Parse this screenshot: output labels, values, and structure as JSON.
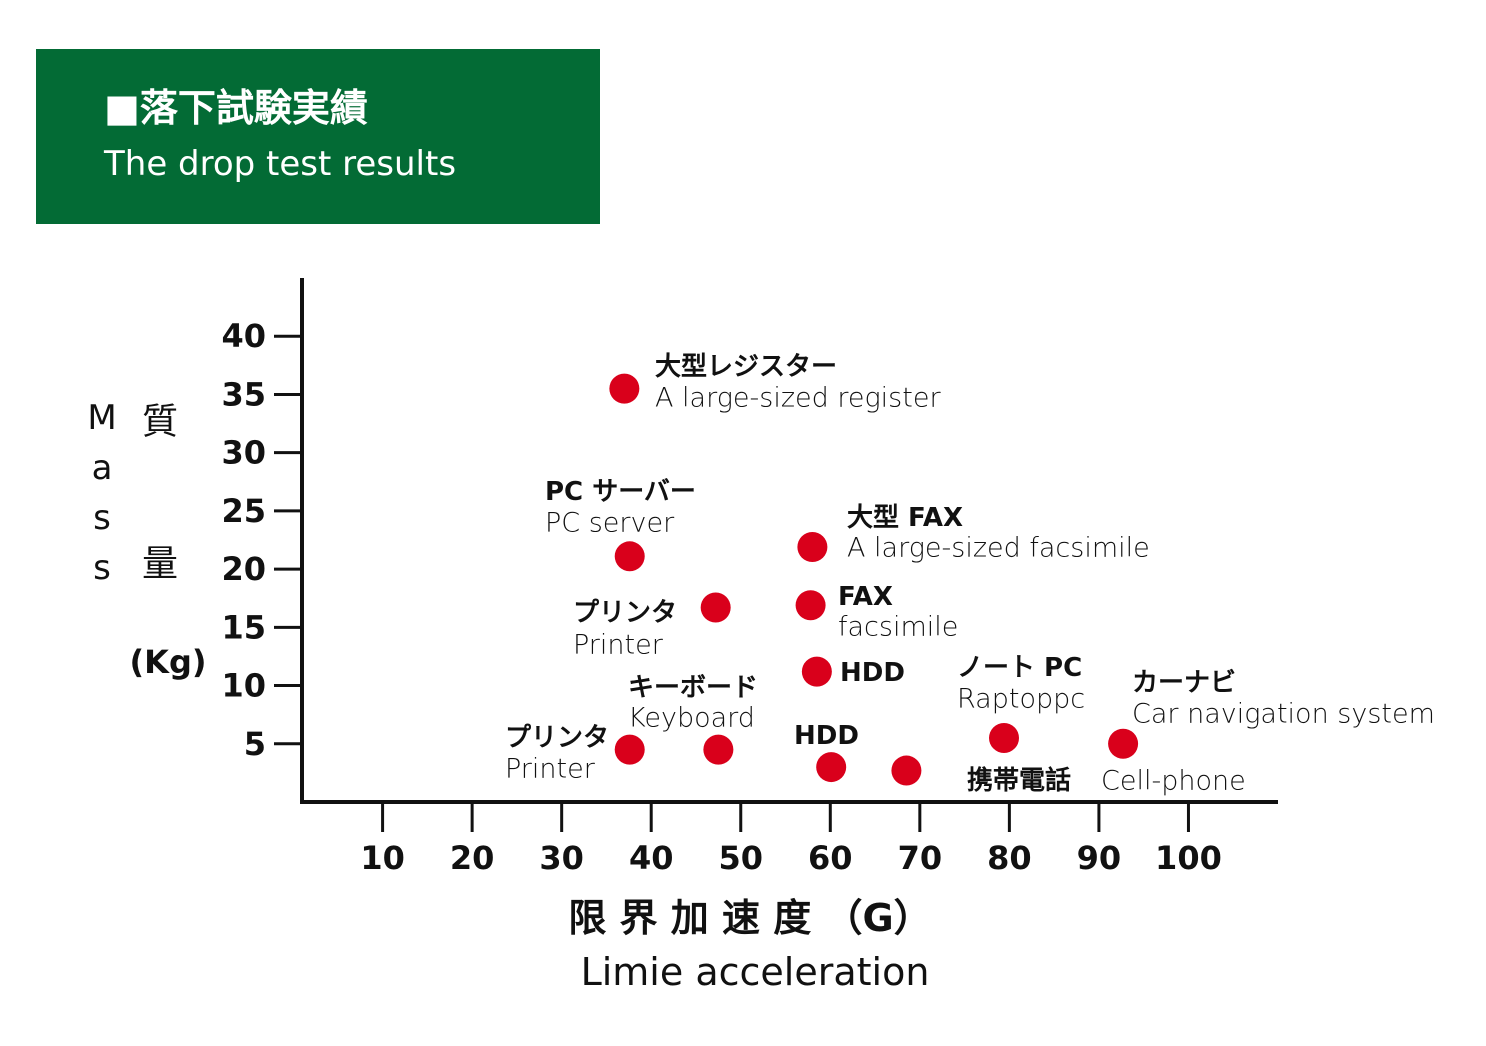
{
  "chart_data": {
    "type": "scatter",
    "title": "■落下試験実績",
    "subtitle": "The drop test results",
    "x_label": "限 界 加 速 度 （G）",
    "x_label_en": "Limie acceleration",
    "y_label": "質量",
    "y_label_en": "Mass",
    "y_unit": "(Kg)",
    "color": "#d9001b",
    "x": [
      37,
      37.6,
      47.2,
      58,
      57.8,
      58.5,
      37.6,
      47.5,
      60.1,
      68.5,
      79.4,
      92.7
    ],
    "values": [
      35.5,
      21.1,
      16.7,
      21.9,
      16.9,
      11.2,
      4.5,
      4.5,
      3,
      2.7,
      5.5,
      5
    ],
    "labels": [
      [
        "大型レジスター",
        "A large-sized register"
      ],
      [
        "PC サーバー",
        "PC server"
      ],
      [
        "プリンタ",
        "Printer"
      ],
      [
        "大型 FAX",
        "A large-sized  facsimile"
      ],
      [
        "FAX",
        "facsimile"
      ],
      [
        "HDD"
      ],
      [
        "プリンタ",
        "Printer"
      ],
      [
        "キーボード",
        "Keyboard"
      ],
      [
        "HDD"
      ],
      [
        "携帯電話",
        "Cell-phone"
      ],
      [
        "ノート PC",
        "Raptoppc"
      ],
      [
        "カーナビ",
        "Car navigation system"
      ]
    ],
    "xlim": [
      1,
      110
    ],
    "ylim": [
      0,
      45
    ],
    "xticks": [
      10,
      20,
      30,
      40,
      50,
      60,
      70,
      80,
      90,
      100
    ],
    "yticks": [
      5,
      10,
      15,
      20,
      25,
      30,
      35,
      40
    ]
  }
}
